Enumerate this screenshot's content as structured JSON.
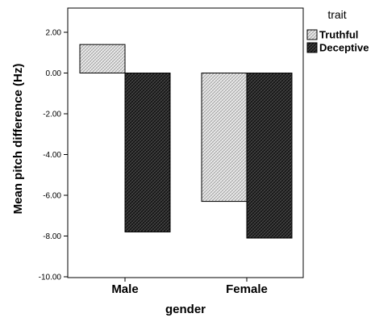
{
  "chart_data": {
    "type": "bar",
    "categories": [
      "Male",
      "Female"
    ],
    "series": [
      {
        "name": "Truthful",
        "values": [
          1.4,
          -6.3
        ],
        "pattern": "light-hatch"
      },
      {
        "name": "Deceptive",
        "values": [
          -7.8,
          -8.1
        ],
        "pattern": "dark-hatch"
      }
    ],
    "xlabel": "gender",
    "ylabel": "Mean pitch difference (Hz)",
    "ylim": [
      -10,
      2.6
    ],
    "yticks": [
      -10,
      -8,
      -6,
      -4,
      -2,
      0,
      2
    ],
    "ytick_labels": [
      "-10.00",
      "-8.00",
      "-6.00",
      "-4.00",
      "-2.00",
      "0.00",
      "2.00"
    ],
    "legend_title": "trait",
    "legend_position": "right, outside plot",
    "grid": false,
    "colors": {
      "light": "#e6e6e6",
      "dark": "#1f1f1f",
      "edge": "#000000"
    }
  }
}
